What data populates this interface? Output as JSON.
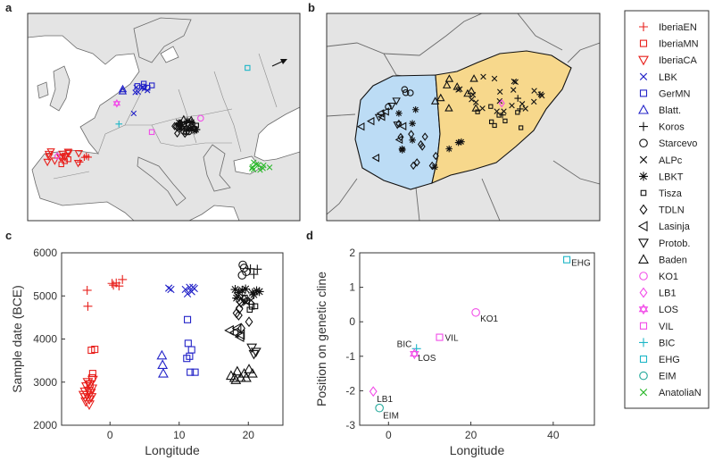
{
  "colors": {
    "red": "#e8201c",
    "pink": "#f24ce8",
    "blue": "#2323c8",
    "black": "#111111",
    "cyan": "#1db6c7",
    "teal": "#25a99b",
    "green": "#2db82d",
    "land": "#e4e4e4",
    "sea": "#ffffff",
    "tdlnRegion": "#bcdcf5",
    "alpRegion": "#f7d88c"
  },
  "panels": {
    "a": "a",
    "b": "b",
    "c": "c",
    "d": "d"
  },
  "legend": [
    {
      "label": "IberiaEN",
      "marker": "plus",
      "color": "#e8201c"
    },
    {
      "label": "IberiaMN",
      "marker": "square",
      "color": "#e8201c"
    },
    {
      "label": "IberiaCA",
      "marker": "triangle-down",
      "color": "#e8201c"
    },
    {
      "label": "LBK",
      "marker": "x",
      "color": "#2323c8"
    },
    {
      "label": "GerMN",
      "marker": "square",
      "color": "#2323c8"
    },
    {
      "label": "Blatt.",
      "marker": "triangle-up",
      "color": "#2323c8"
    },
    {
      "label": "Koros",
      "marker": "plus",
      "color": "#111111"
    },
    {
      "label": "Starcevo",
      "marker": "circle",
      "color": "#111111"
    },
    {
      "label": "ALPc",
      "marker": "x",
      "color": "#111111"
    },
    {
      "label": "LBKT",
      "marker": "asterisk",
      "color": "#111111"
    },
    {
      "label": "Tisza",
      "marker": "square-small",
      "color": "#111111"
    },
    {
      "label": "TDLN",
      "marker": "diamond",
      "color": "#111111"
    },
    {
      "label": "Lasinja",
      "marker": "triangle-left",
      "color": "#111111"
    },
    {
      "label": "Protob.",
      "marker": "triangle-down",
      "color": "#111111"
    },
    {
      "label": "Baden",
      "marker": "triangle-up",
      "color": "#111111"
    },
    {
      "label": "KO1",
      "marker": "circle",
      "color": "#f24ce8"
    },
    {
      "label": "LB1",
      "marker": "diamond",
      "color": "#f24ce8"
    },
    {
      "label": "LOS",
      "marker": "hexagram",
      "color": "#f24ce8"
    },
    {
      "label": "VIL",
      "marker": "square",
      "color": "#f24ce8"
    },
    {
      "label": "BIC",
      "marker": "plus",
      "color": "#1db6c7"
    },
    {
      "label": "EHG",
      "marker": "square",
      "color": "#1db6c7"
    },
    {
      "label": "EIM",
      "marker": "circle",
      "color": "#25a99b"
    },
    {
      "label": "AnatoliaN",
      "marker": "x",
      "color": "#2db82d"
    }
  ],
  "chart_data": [
    {
      "id": "c",
      "type": "scatter",
      "xlabel": "Longitude",
      "ylabel": "Sample date (BCE)",
      "xlim": [
        -7,
        25
      ],
      "ylim": [
        2000,
        6000
      ],
      "xticks": [
        0,
        10,
        20
      ],
      "yticks": [
        2000,
        3000,
        4000,
        5000,
        6000
      ],
      "groups": [
        {
          "name": "IberiaEN",
          "marker": "plus",
          "color": "#e8201c",
          "points": [
            [
              -3.3,
              5130
            ],
            [
              -3.2,
              4760
            ],
            [
              0.5,
              5250
            ],
            [
              0.9,
              5300
            ],
            [
              1.3,
              5230
            ],
            [
              1.8,
              5380
            ],
            [
              0.3,
              5290
            ]
          ]
        },
        {
          "name": "IberiaMN",
          "marker": "square",
          "color": "#e8201c",
          "points": [
            [
              -2.7,
              3740
            ],
            [
              -2.5,
              3200
            ],
            [
              -2.9,
              2950
            ],
            [
              -2.2,
              3760
            ],
            [
              -2.6,
              3100
            ]
          ]
        },
        {
          "name": "IberiaCA",
          "marker": "triangle-down",
          "color": "#e8201c",
          "points": [
            [
              -3.3,
              2700
            ],
            [
              -3.6,
              2650
            ],
            [
              -3.0,
              2600
            ],
            [
              -2.8,
              2750
            ],
            [
              -3.5,
              2550
            ],
            [
              -3.1,
              2800
            ],
            [
              -2.6,
              2850
            ],
            [
              -3.8,
              2700
            ],
            [
              -2.9,
              2950
            ],
            [
              -3.2,
              3000
            ],
            [
              -2.7,
              2650
            ],
            [
              -3.4,
              2900
            ],
            [
              -3.0,
              2480
            ],
            [
              -2.5,
              3050
            ],
            [
              -3.6,
              2780
            ]
          ]
        },
        {
          "name": "LBK",
          "marker": "x",
          "color": "#2323c8",
          "points": [
            [
              8.5,
              5180
            ],
            [
              8.8,
              5150
            ],
            [
              10.9,
              5150
            ],
            [
              11.5,
              5200
            ],
            [
              11.8,
              5100
            ],
            [
              12.2,
              5170
            ],
            [
              11.2,
              5050
            ],
            [
              12.0,
              5200
            ]
          ]
        },
        {
          "name": "GerMN",
          "marker": "square",
          "color": "#2323c8",
          "points": [
            [
              11.2,
              4450
            ],
            [
              11.3,
              3900
            ],
            [
              11.8,
              3750
            ],
            [
              11.5,
              3600
            ],
            [
              11.1,
              3550
            ],
            [
              11.6,
              3230
            ],
            [
              12.3,
              3230
            ]
          ]
        },
        {
          "name": "Blatt.",
          "marker": "triangle-up",
          "color": "#2323c8",
          "points": [
            [
              7.5,
              3620
            ],
            [
              7.6,
              3400
            ],
            [
              7.7,
              3200
            ]
          ]
        },
        {
          "name": "Koros",
          "marker": "plus",
          "color": "#111111",
          "points": [
            [
              20.3,
              5630
            ],
            [
              21.3,
              5620
            ],
            [
              20.8,
              5500
            ]
          ]
        },
        {
          "name": "Starcevo",
          "marker": "circle",
          "color": "#111111",
          "points": [
            [
              19.2,
              5720
            ],
            [
              19.4,
              5650
            ],
            [
              19.7,
              5560
            ],
            [
              19.1,
              5480
            ]
          ]
        },
        {
          "name": "ALPc",
          "marker": "x",
          "color": "#111111",
          "points": [
            [
              18.4,
              5000
            ],
            [
              19.0,
              4950
            ],
            [
              20.4,
              4900
            ],
            [
              18.7,
              4800
            ],
            [
              19.7,
              4850
            ]
          ]
        },
        {
          "name": "LBKT",
          "marker": "asterisk",
          "color": "#111111",
          "points": [
            [
              18.1,
              5150
            ],
            [
              18.6,
              5080
            ],
            [
              19.1,
              5130
            ],
            [
              20.6,
              5070
            ],
            [
              21.2,
              5120
            ],
            [
              21.6,
              5100
            ],
            [
              18.3,
              4950
            ],
            [
              20.8,
              5030
            ],
            [
              19.6,
              5160
            ]
          ]
        },
        {
          "name": "Tisza",
          "marker": "square-small",
          "color": "#111111",
          "points": [
            [
              20.5,
              4750
            ],
            [
              21.0,
              4760
            ],
            [
              19.8,
              4880
            ],
            [
              20.2,
              4680
            ],
            [
              19.5,
              4960
            ]
          ]
        },
        {
          "name": "TDLN",
          "marker": "diamond",
          "color": "#111111",
          "points": [
            [
              18.7,
              4700
            ],
            [
              18.9,
              4850
            ],
            [
              19.4,
              4920
            ],
            [
              18.3,
              4600
            ],
            [
              18.6,
              4550
            ],
            [
              20.1,
              4400
            ],
            [
              19.0,
              4250
            ]
          ]
        },
        {
          "name": "Lasinja",
          "marker": "triangle-left",
          "color": "#111111",
          "points": [
            [
              17.3,
              4200
            ],
            [
              18.0,
              4150
            ],
            [
              18.4,
              4250
            ],
            [
              18.8,
              4050
            ],
            [
              18.9,
              4100
            ]
          ]
        },
        {
          "name": "Protob.",
          "marker": "triangle-down",
          "color": "#111111",
          "points": [
            [
              20.5,
              3800
            ],
            [
              20.8,
              3650
            ],
            [
              21.1,
              3700
            ]
          ]
        },
        {
          "name": "Baden",
          "marker": "triangle-up",
          "color": "#111111",
          "points": [
            [
              17.5,
              3150
            ],
            [
              18.0,
              3100
            ],
            [
              18.4,
              3250
            ],
            [
              18.9,
              3100
            ],
            [
              19.4,
              3200
            ],
            [
              19.7,
              3100
            ],
            [
              20.1,
              3300
            ],
            [
              20.6,
              3200
            ],
            [
              18.2,
              3050
            ]
          ]
        }
      ]
    },
    {
      "id": "d",
      "type": "scatter",
      "xlabel": "Longitude",
      "ylabel": "Position on genetic cline",
      "xlim": [
        -7,
        50
      ],
      "ylim": [
        -3,
        2
      ],
      "xticks": [
        0,
        20,
        40
      ],
      "yticks": [
        -3,
        -2,
        -1,
        0,
        1,
        2
      ],
      "points": [
        {
          "label": "EHG",
          "x": 43.3,
          "y": 1.8,
          "marker": "square",
          "color": "#1db6c7"
        },
        {
          "label": "KO1",
          "x": 21.2,
          "y": 0.27,
          "marker": "circle",
          "color": "#f24ce8"
        },
        {
          "label": "VIL",
          "x": 12.4,
          "y": -0.45,
          "marker": "square",
          "color": "#f24ce8"
        },
        {
          "label": "BIC",
          "x": 6.8,
          "y": -0.78,
          "marker": "plus",
          "color": "#1db6c7"
        },
        {
          "label": "LOS",
          "x": 6.3,
          "y": -0.93,
          "marker": "hexagram",
          "color": "#f24ce8"
        },
        {
          "label": "LB1",
          "x": -3.7,
          "y": -2.02,
          "marker": "diamond",
          "color": "#f24ce8"
        },
        {
          "label": "EIM",
          "x": -2.2,
          "y": -2.5,
          "marker": "circle",
          "color": "#25a99b"
        }
      ]
    }
  ]
}
